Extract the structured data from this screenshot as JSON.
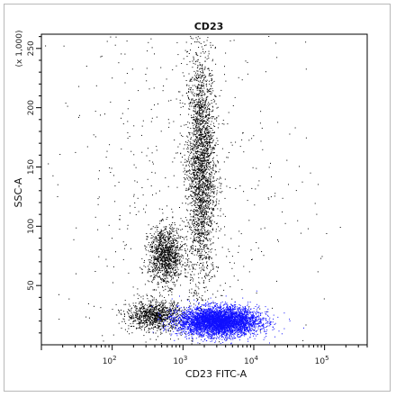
{
  "chart_data": {
    "type": "scatter",
    "title": "CD23",
    "xlabel": "CD23 FITC-A",
    "ylabel": "SSC-A",
    "y_multiplier": "(x 1,000)",
    "x_scale": "log",
    "xlim": [
      10,
      400000
    ],
    "ylim": [
      0,
      262
    ],
    "x_ticks": [
      {
        "value": 100,
        "base": "10",
        "exp": "2"
      },
      {
        "value": 1000,
        "base": "10",
        "exp": "3"
      },
      {
        "value": 10000,
        "base": "10",
        "exp": "4"
      },
      {
        "value": 100000,
        "base": "10",
        "exp": "5"
      }
    ],
    "y_ticks": [
      "50",
      "100",
      "150",
      "200",
      "250"
    ],
    "grid": false,
    "populations": [
      {
        "color": "#000000",
        "cx_log": 3.25,
        "cy": 150,
        "sx_log": 0.1,
        "sy": 50,
        "count": 2600
      },
      {
        "color": "#000000",
        "cx_log": 2.75,
        "cy": 75,
        "sx_log": 0.12,
        "sy": 12,
        "count": 1200
      },
      {
        "color": "#000000",
        "cx_log": 2.6,
        "cy": 25,
        "sx_log": 0.2,
        "sy": 6,
        "count": 1000
      },
      {
        "color": "#000000",
        "cx_log": 3.0,
        "cy": 120,
        "sx_log": 0.9,
        "sy": 80,
        "count": 600
      },
      {
        "color": "#1010ff",
        "cx_log": 3.5,
        "cy": 20,
        "sx_log": 0.28,
        "sy": 6,
        "count": 5000
      }
    ]
  }
}
